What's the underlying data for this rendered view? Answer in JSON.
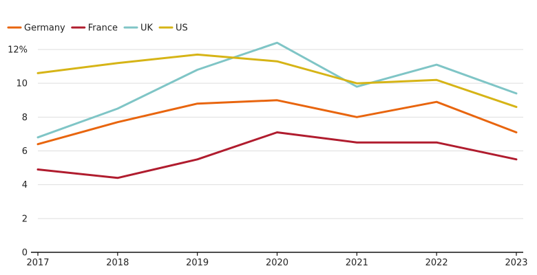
{
  "chart_data": {
    "type": "line",
    "title": "",
    "xlabel": "",
    "ylabel": "",
    "x": [
      2017,
      2018,
      2019,
      2020,
      2021,
      2022,
      2023
    ],
    "x_tick_labels": [
      "2017",
      "2018",
      "2019",
      "2020",
      "2021",
      "2022",
      "2023"
    ],
    "ylim": [
      0,
      12
    ],
    "y_ticks": [
      0,
      2,
      4,
      6,
      8,
      10,
      12
    ],
    "y_tick_labels": [
      "0",
      "2",
      "4",
      "6",
      "8",
      "10",
      "12%"
    ],
    "grid": true,
    "legend_position": "top-left",
    "series": [
      {
        "name": "Germany",
        "color": "#e8650e",
        "values": [
          6.4,
          7.7,
          8.8,
          9.0,
          8.0,
          8.9,
          7.1
        ]
      },
      {
        "name": "France",
        "color": "#b01c2e",
        "values": [
          4.9,
          4.4,
          5.5,
          7.1,
          6.5,
          6.5,
          5.5
        ]
      },
      {
        "name": "UK",
        "color": "#7fc5c6",
        "values": [
          6.8,
          8.5,
          10.8,
          12.4,
          9.8,
          11.1,
          9.4
        ]
      },
      {
        "name": "US",
        "color": "#d6b416",
        "values": [
          10.6,
          11.2,
          11.7,
          11.3,
          10.0,
          10.2,
          8.6
        ]
      }
    ]
  }
}
